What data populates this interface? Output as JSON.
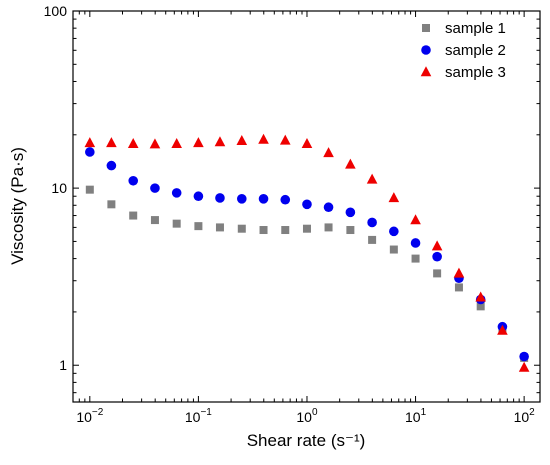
{
  "chart_data": {
    "type": "scatter",
    "x_scale": "log",
    "y_scale": "log",
    "xlabel": "Shear rate (s⁻¹)",
    "ylabel": "Viscosity (Pa·s)",
    "xlim": [
      0.007,
      140
    ],
    "ylim": [
      0.62,
      100
    ],
    "x_ticks": [
      {
        "value": 0.01,
        "base": "10",
        "exp": "−2"
      },
      {
        "value": 0.1,
        "base": "10",
        "exp": "−1"
      },
      {
        "value": 1,
        "base": "10",
        "exp": "0"
      },
      {
        "value": 10,
        "base": "10",
        "exp": "1"
      },
      {
        "value": 100,
        "base": "10",
        "exp": "2"
      }
    ],
    "y_ticks": [
      {
        "value": 1,
        "label": "1"
      },
      {
        "value": 10,
        "label": "10"
      },
      {
        "value": 100,
        "label": "100"
      }
    ],
    "grid": false,
    "legend_position": "top-right",
    "series": [
      {
        "name": "sample 1",
        "marker": "square",
        "color": "#808080",
        "x": [
          0.01,
          0.0158,
          0.0251,
          0.0398,
          0.0631,
          0.1,
          0.158,
          0.251,
          0.398,
          0.631,
          1,
          1.58,
          2.51,
          3.98,
          6.31,
          10,
          15.8,
          25.1,
          39.8,
          63.1,
          100
        ],
        "y": [
          9.8,
          8.1,
          7.0,
          6.6,
          6.3,
          6.1,
          6.0,
          5.9,
          5.8,
          5.8,
          5.9,
          6.0,
          5.8,
          5.1,
          4.5,
          4.0,
          3.3,
          2.75,
          2.15,
          1.62,
          1.1
        ]
      },
      {
        "name": "sample 2",
        "marker": "circle",
        "color": "#0000ee",
        "x": [
          0.01,
          0.0158,
          0.0251,
          0.0398,
          0.0631,
          0.1,
          0.158,
          0.251,
          0.398,
          0.631,
          1,
          1.58,
          2.51,
          3.98,
          6.31,
          10,
          15.8,
          25.1,
          39.8,
          63.1,
          100
        ],
        "y": [
          16.0,
          13.4,
          11.0,
          10.0,
          9.4,
          9.0,
          8.8,
          8.7,
          8.7,
          8.6,
          8.1,
          7.8,
          7.3,
          6.4,
          5.7,
          4.9,
          4.1,
          3.1,
          2.35,
          1.65,
          1.12
        ]
      },
      {
        "name": "sample 3",
        "marker": "triangle",
        "color": "#ee0000",
        "x": [
          0.01,
          0.0158,
          0.0251,
          0.0398,
          0.0631,
          0.1,
          0.158,
          0.251,
          0.398,
          0.631,
          1,
          1.58,
          2.51,
          3.98,
          6.31,
          10,
          15.8,
          25.1,
          39.8,
          63.1,
          100
        ],
        "y": [
          18.0,
          18.0,
          17.8,
          17.7,
          17.8,
          18.0,
          18.2,
          18.5,
          18.8,
          18.6,
          17.8,
          15.8,
          13.6,
          11.2,
          8.8,
          6.6,
          4.7,
          3.3,
          2.42,
          1.57,
          0.97
        ]
      }
    ]
  }
}
